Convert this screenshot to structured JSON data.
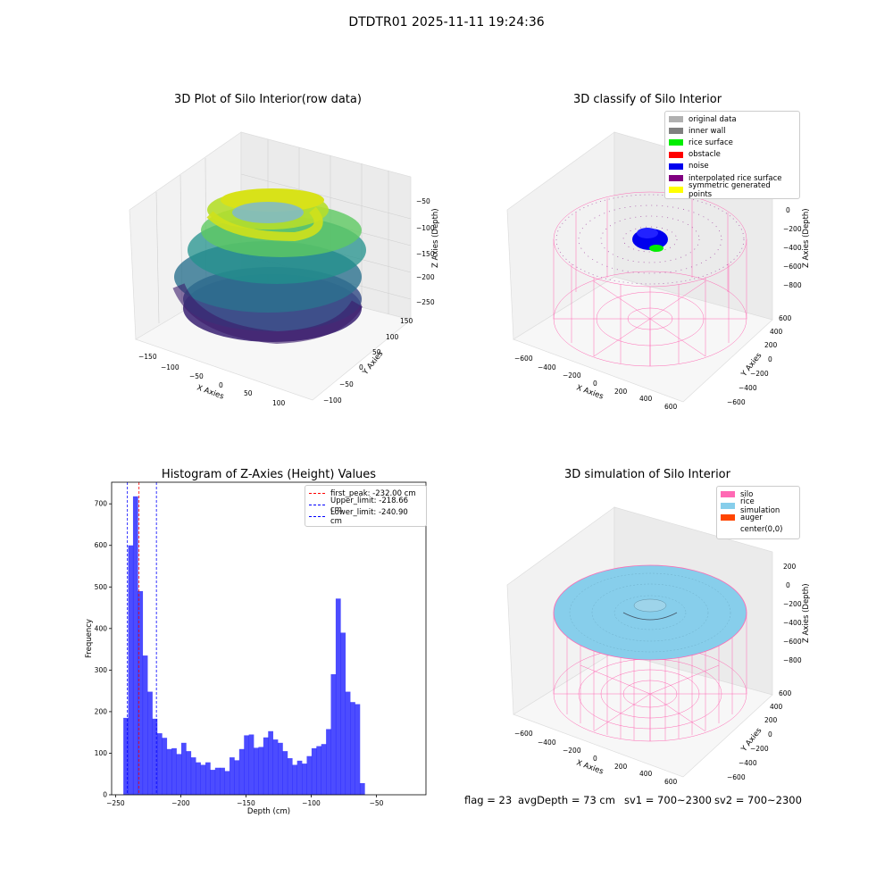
{
  "figure": {
    "suptitle": "DTDTR01 2025-11-11 19:24:36",
    "footer": {
      "flag": "flag = 23",
      "avg_depth": "avgDepth = 73 cm",
      "sv1": "sv1 = 700~2300",
      "sv2": "sv2 = 700~2300"
    }
  },
  "panels": {
    "raw": {
      "title": "3D Plot of Silo Interior(row data)",
      "xlabel": "X Axies",
      "ylabel": "Y Axies",
      "zlabel": "Z Axies (Depth)",
      "xticks": [
        "−150",
        "−100",
        "−50",
        "0",
        "50",
        "100"
      ],
      "yticks": [
        "−100",
        "−50",
        "0",
        "50",
        "100",
        "150"
      ],
      "zticks": [
        "−50",
        "−100",
        "−150",
        "−200",
        "−250"
      ]
    },
    "classify": {
      "title": "3D classify of Silo Interior",
      "xlabel": "X Axies",
      "ylabel": "Y Axies",
      "zlabel": "Z Axies (Depth)",
      "xticks": [
        "−600",
        "−400",
        "−200",
        "0",
        "200",
        "400",
        "600"
      ],
      "yticks": [
        "−600",
        "−400",
        "−200",
        "0",
        "200",
        "400",
        "600"
      ],
      "zticks": [
        "200",
        "0",
        "−200",
        "−400",
        "−600",
        "−800"
      ],
      "legend": [
        {
          "label": "original data",
          "color": "#b0b0b0"
        },
        {
          "label": "inner wall",
          "color": "#808080"
        },
        {
          "label": "rice surface",
          "color": "#00ee00"
        },
        {
          "label": "obstacle",
          "color": "#ff0000"
        },
        {
          "label": "noise",
          "color": "#0000ee"
        },
        {
          "label": "interpolated rice surface",
          "color": "#800080"
        },
        {
          "label": "symmetric generated points",
          "color": "#ffff00"
        }
      ]
    },
    "simulation": {
      "title": "3D simulation of Silo Interior",
      "xlabel": "X Axies",
      "ylabel": "Y Axies",
      "zlabel": "Z Axies (Depth)",
      "xticks": [
        "−600",
        "−400",
        "−200",
        "0",
        "200",
        "400",
        "600"
      ],
      "yticks": [
        "−600",
        "−400",
        "−200",
        "0",
        "200",
        "400",
        "600"
      ],
      "zticks": [
        "200",
        "0",
        "−200",
        "−400",
        "−600",
        "−800"
      ],
      "legend": [
        {
          "label": "silo",
          "color": "#ff69b4"
        },
        {
          "label": "rice simulation",
          "color": "#87ceeb"
        },
        {
          "label": "auger",
          "color": "#ff4500"
        },
        {
          "label": "center(0,0)",
          "color": "#ffffff"
        }
      ]
    }
  },
  "chart_data": {
    "type": "bar",
    "title": "Histogram of Z-Axies (Height) Values",
    "xlabel": "Depth (cm)",
    "ylabel": "Frequency",
    "xlim": [
      -253,
      -12
    ],
    "ylim": [
      0,
      752
    ],
    "xticks": [
      -250,
      -200,
      -150,
      -100,
      -50
    ],
    "yticks": [
      0,
      100,
      200,
      300,
      400,
      500,
      600,
      700
    ],
    "bin_start": -244,
    "bin_width": 3.7,
    "values": [
      185,
      600,
      718,
      490,
      335,
      248,
      183,
      148,
      137,
      110,
      112,
      98,
      125,
      105,
      90,
      78,
      72,
      78,
      60,
      65,
      65,
      57,
      90,
      83,
      110,
      143,
      145,
      113,
      115,
      138,
      153,
      133,
      125,
      105,
      88,
      72,
      82,
      75,
      93,
      112,
      117,
      122,
      158,
      290,
      472,
      390,
      248,
      223,
      218,
      28
    ],
    "bar_color": "#0000ff",
    "vlines": [
      {
        "x": -232.0,
        "label": "first_peak: -232.00 cm",
        "color": "#ff0000"
      },
      {
        "x": -218.66,
        "label": "Upper_limit: -218.66 cm",
        "color": "#0000ff"
      },
      {
        "x": -240.9,
        "label": "Lower_limit: -240.90 cm",
        "color": "#0000ff"
      }
    ],
    "legend_position": "top-right"
  }
}
